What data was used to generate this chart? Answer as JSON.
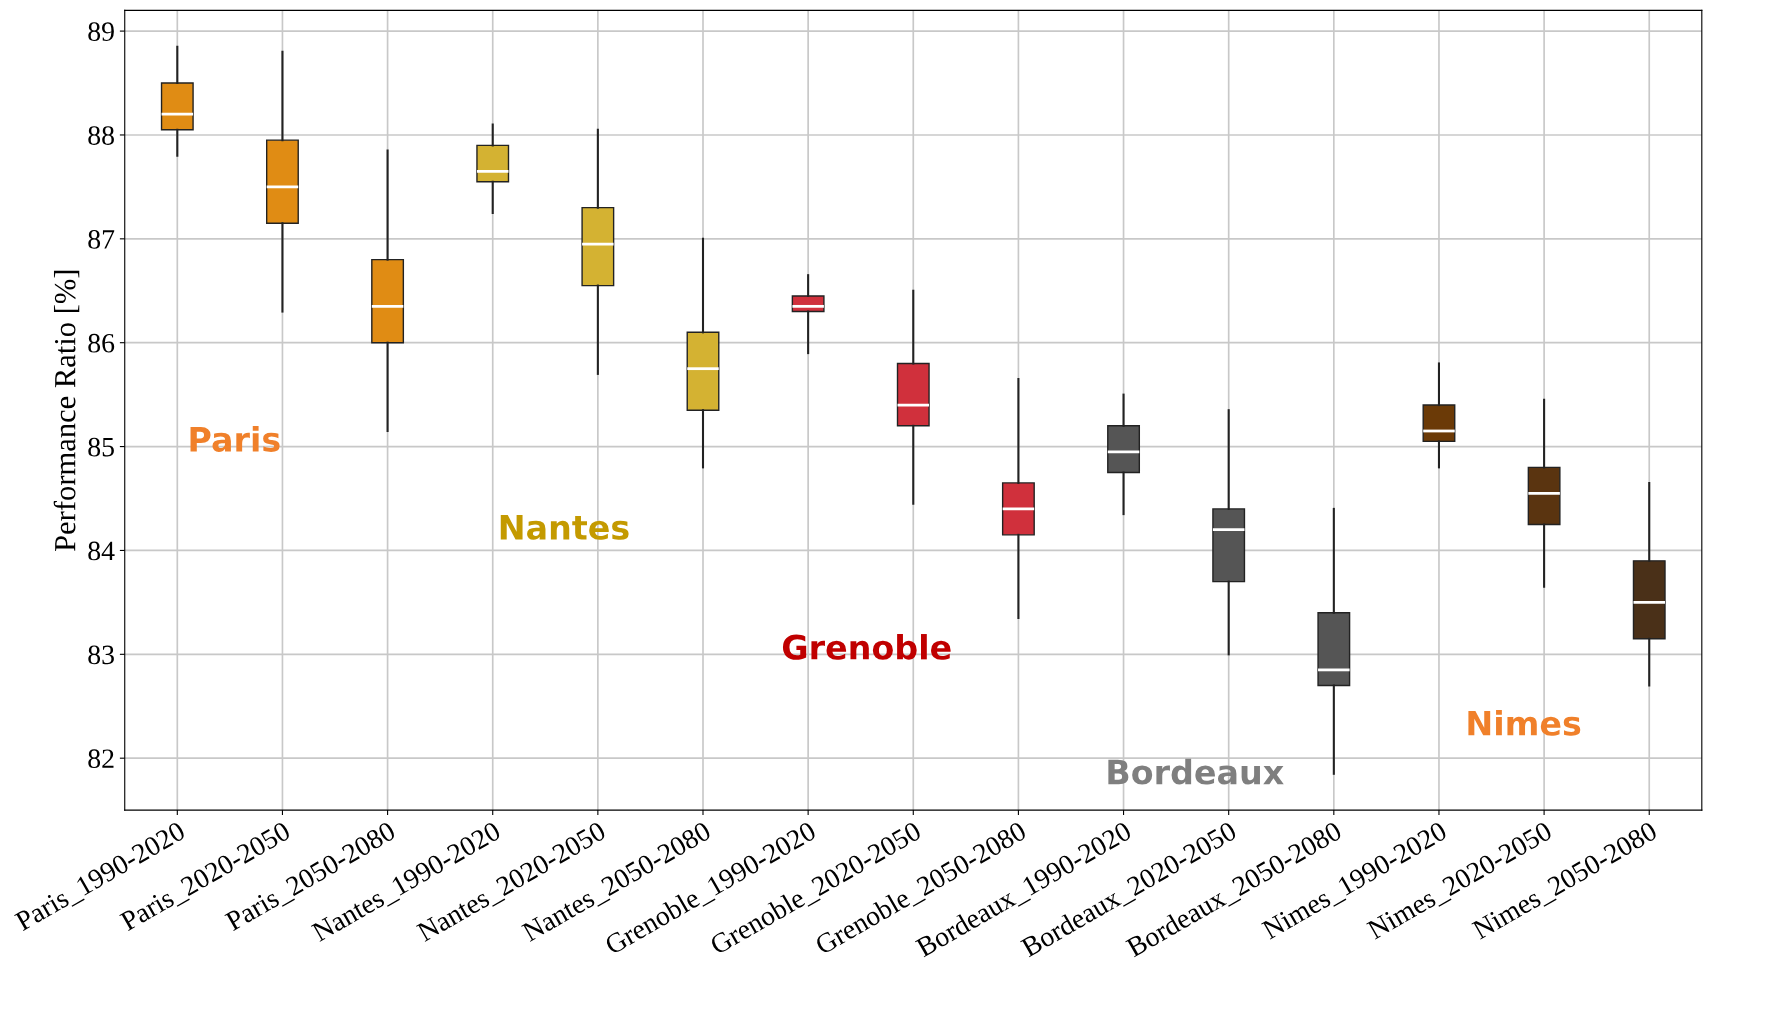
{
  "chart_data": {
    "type": "box",
    "ylabel": "Performance Ratio [%]",
    "categories": [
      "Paris_1990-2020",
      "Paris_2020-2050",
      "Paris_2050-2080",
      "Nantes_1990-2020",
      "Nantes_2020-2050",
      "Nantes_2050-2080",
      "Grenoble_1990-2020",
      "Grenoble_2020-2050",
      "Grenoble_2050-2080",
      "Bordeaux_1990-2020",
      "Bordeaux_2020-2050",
      "Bordeaux_2050-2080",
      "Nimes_1990-2020",
      "Nimes_2020-2050",
      "Nimes_2050-2080"
    ],
    "colors": [
      "#e08c14",
      "#e08c14",
      "#e08c14",
      "#d4b232",
      "#d4b232",
      "#d4b232",
      "#d0303c",
      "#d0303c",
      "#d0303c",
      "#555555",
      "#555555",
      "#555555",
      "#6b3a07",
      "#5a3410",
      "#4a3018"
    ],
    "boxes": [
      {
        "low": 87.8,
        "q1": 88.05,
        "median": 88.2,
        "q3": 88.5,
        "high": 88.85
      },
      {
        "low": 86.3,
        "q1": 87.15,
        "median": 87.5,
        "q3": 87.95,
        "high": 88.8
      },
      {
        "low": 85.15,
        "q1": 86.0,
        "median": 86.35,
        "q3": 86.8,
        "high": 87.85
      },
      {
        "low": 87.25,
        "q1": 87.55,
        "median": 87.65,
        "q3": 87.9,
        "high": 88.1
      },
      {
        "low": 85.7,
        "q1": 86.55,
        "median": 86.95,
        "q3": 87.3,
        "high": 88.05
      },
      {
        "low": 84.8,
        "q1": 85.35,
        "median": 85.75,
        "q3": 86.1,
        "high": 87.0
      },
      {
        "low": 85.9,
        "q1": 86.3,
        "median": 86.35,
        "q3": 86.45,
        "high": 86.65
      },
      {
        "low": 84.45,
        "q1": 85.2,
        "median": 85.4,
        "q3": 85.8,
        "high": 86.5
      },
      {
        "low": 83.35,
        "q1": 84.15,
        "median": 84.4,
        "q3": 84.65,
        "high": 85.65
      },
      {
        "low": 84.35,
        "q1": 84.75,
        "median": 84.95,
        "q3": 85.2,
        "high": 85.5
      },
      {
        "low": 83.0,
        "q1": 83.7,
        "median": 84.2,
        "q3": 84.4,
        "high": 85.35
      },
      {
        "low": 81.85,
        "q1": 82.7,
        "median": 82.85,
        "q3": 83.4,
        "high": 84.4
      },
      {
        "low": 84.8,
        "q1": 85.05,
        "median": 85.15,
        "q3": 85.4,
        "high": 85.8
      },
      {
        "low": 83.65,
        "q1": 84.25,
        "median": 84.55,
        "q3": 84.8,
        "high": 85.45
      },
      {
        "low": 82.7,
        "q1": 83.15,
        "median": 83.5,
        "q3": 83.9,
        "high": 84.65
      }
    ],
    "ylim": [
      81.5,
      89.2
    ],
    "yticks": [
      82,
      83,
      84,
      85,
      86,
      87,
      88,
      89
    ],
    "grid": true,
    "annotations": [
      "Paris",
      "Nantes",
      "Grenoble",
      "Bordeaux",
      "Nimes"
    ]
  }
}
